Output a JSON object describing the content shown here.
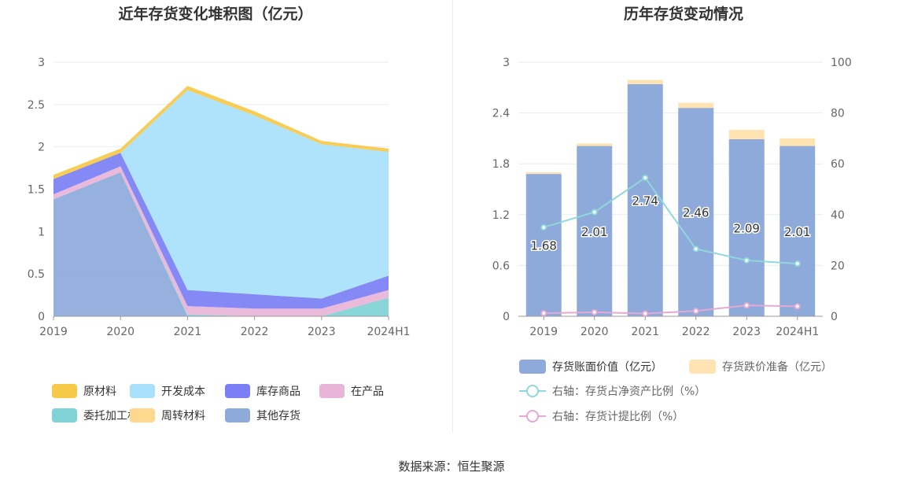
{
  "chart_data": [
    {
      "type": "area",
      "stacked": true,
      "title": "近年存货变化堆积图（亿元）",
      "x": [
        "2019",
        "2020",
        "2021",
        "2022",
        "2023",
        "2024H1"
      ],
      "ylim": [
        0,
        3
      ],
      "yticks": [
        "0",
        "0.5",
        "1",
        "1.5",
        "2",
        "2.5",
        "3"
      ],
      "grid": true,
      "legend_position": "bottom",
      "series": [
        {
          "name": "其他存货",
          "color": "#8eaadb",
          "values": [
            1.38,
            1.7,
            0.0,
            0.0,
            0.0,
            0.0
          ]
        },
        {
          "name": "委托加工材料",
          "color": "#7fd3d6",
          "values": [
            0.0,
            0.0,
            0.02,
            0.0,
            0.0,
            0.22
          ]
        },
        {
          "name": "在产品",
          "color": "#e8b4d8",
          "values": [
            0.06,
            0.07,
            0.1,
            0.09,
            0.09,
            0.09
          ]
        },
        {
          "name": "库存商品",
          "color": "#7b7ff5",
          "values": [
            0.18,
            0.16,
            0.19,
            0.17,
            0.12,
            0.17
          ]
        },
        {
          "name": "开发成本",
          "color": "#a8e0fb",
          "values": [
            0.0,
            0.0,
            2.36,
            2.11,
            1.82,
            1.46
          ]
        },
        {
          "name": "周转材料",
          "color": "#ffd88f",
          "values": [
            0.0,
            0.0,
            0.0,
            0.0,
            0.0,
            0.0
          ]
        },
        {
          "name": "原材料",
          "color": "#f7c948",
          "values": [
            0.05,
            0.05,
            0.05,
            0.05,
            0.04,
            0.04
          ]
        }
      ],
      "legend": [
        {
          "name": "原材料",
          "color": "#f7c948"
        },
        {
          "name": "开发成本",
          "color": "#a8e0fb"
        },
        {
          "name": "库存商品",
          "color": "#7b7ff5"
        },
        {
          "name": "在产品",
          "color": "#e8b4d8"
        },
        {
          "name": "委托加工材料",
          "color": "#7fd3d6"
        },
        {
          "name": "周转材料",
          "color": "#ffd88f"
        },
        {
          "name": "其他存货",
          "color": "#8eaadb"
        }
      ]
    },
    {
      "type": "bar",
      "stacked": true,
      "title": "历年存货变动情况",
      "categories": [
        "2019",
        "2020",
        "2021",
        "2022",
        "2023",
        "2024H1"
      ],
      "ylim": [
        0,
        3
      ],
      "yticks": [
        "0",
        "0.6",
        "1.2",
        "1.8",
        "2.4",
        "3"
      ],
      "y2lim": [
        0,
        100
      ],
      "y2ticks": [
        "0",
        "20",
        "40",
        "60",
        "80",
        "100"
      ],
      "grid": true,
      "legend_position": "bottom",
      "series": [
        {
          "name": "存货账面价值（亿元）",
          "color": "#8eaadb",
          "axis": "left",
          "values": [
            1.68,
            2.01,
            2.74,
            2.46,
            2.09,
            2.01
          ],
          "labels": [
            "1.68",
            "2.01",
            "2.74",
            "2.46",
            "2.09",
            "2.01"
          ]
        },
        {
          "name": "存货跌价准备（亿元）",
          "color": "#ffe3b0",
          "axis": "left",
          "values": [
            0.02,
            0.03,
            0.05,
            0.06,
            0.11,
            0.09
          ]
        },
        {
          "name": "右轴：存货占净资产比例（%）",
          "color": "#8fd8db",
          "axis": "right",
          "type": "line",
          "values": [
            35,
            41,
            54.5,
            26.5,
            22,
            20.7
          ]
        },
        {
          "name": "右轴：存货计提比例（%）",
          "color": "#e6a9d3",
          "axis": "right",
          "type": "line",
          "values": [
            1.2,
            1.6,
            1.1,
            2.1,
            4.3,
            3.9
          ]
        }
      ]
    }
  ],
  "footer": {
    "source": "数据来源：恒生聚源"
  }
}
